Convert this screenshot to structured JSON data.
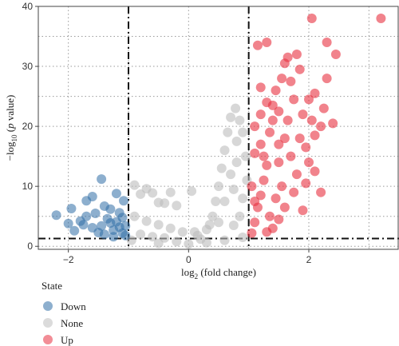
{
  "chart_data": {
    "type": "scatter",
    "title": "",
    "xlabel": {
      "base": "log",
      "sub": "2",
      "rest": " (fold change)"
    },
    "ylabel": {
      "pre": "−log",
      "sub": "10",
      "mid": " (",
      "ital": "p",
      "post": " value)"
    },
    "xlim": [
      -2.5,
      3.5
    ],
    "ylim": [
      -0.5,
      40
    ],
    "xticks": [
      -2,
      0,
      2
    ],
    "yticks": [
      0,
      10,
      20,
      30,
      40
    ],
    "minor_x": [
      -1,
      1,
      3
    ],
    "minor_y": [
      5,
      15,
      25,
      35
    ],
    "grid": "dotted",
    "thresholds": {
      "fold_change": [
        -1,
        1
      ],
      "pvalue": 1.3
    },
    "legend": {
      "title": "State",
      "placement": "bottom-left",
      "entries": [
        {
          "name": "Down",
          "color": "#2f6ea6"
        },
        {
          "name": "None",
          "color": "#bdbdbd"
        },
        {
          "name": "Up",
          "color": "#e8303f"
        }
      ]
    },
    "series": [
      {
        "name": "Down",
        "color": "#2f6ea6",
        "opacity": 0.55,
        "points": [
          [
            -2.2,
            5.2
          ],
          [
            -2.0,
            3.8
          ],
          [
            -1.95,
            6.3
          ],
          [
            -1.8,
            4.2
          ],
          [
            -1.7,
            5.0
          ],
          [
            -1.7,
            7.6
          ],
          [
            -1.6,
            8.3
          ],
          [
            -1.55,
            5.5
          ],
          [
            -1.45,
            11.2
          ],
          [
            -1.4,
            6.7
          ],
          [
            -1.35,
            4.6
          ],
          [
            -1.3,
            3.9
          ],
          [
            -1.3,
            6.2
          ],
          [
            -1.25,
            2.7
          ],
          [
            -1.2,
            4.1
          ],
          [
            -1.2,
            8.8
          ],
          [
            -1.15,
            3.2
          ],
          [
            -1.15,
            5.6
          ],
          [
            -1.1,
            2.2
          ],
          [
            -1.1,
            4.8
          ],
          [
            -1.08,
            7.6
          ],
          [
            -1.05,
            3.4
          ],
          [
            -1.05,
            1.8
          ],
          [
            -1.5,
            2.3
          ],
          [
            -1.6,
            3.1
          ],
          [
            -1.4,
            2.0
          ],
          [
            -1.9,
            2.6
          ],
          [
            -1.75,
            3.6
          ],
          [
            -1.25,
            1.6
          ],
          [
            -1.45,
            3.4
          ]
        ]
      },
      {
        "name": "None",
        "color": "#bdbdbd",
        "opacity": 0.6,
        "points": [
          [
            -0.9,
            10.2
          ],
          [
            -0.8,
            8.7
          ],
          [
            -0.7,
            9.6
          ],
          [
            -0.5,
            7.3
          ],
          [
            -0.6,
            8.9
          ],
          [
            -0.3,
            9.0
          ],
          [
            -0.4,
            7.2
          ],
          [
            -0.2,
            6.8
          ],
          [
            0.05,
            9.2
          ],
          [
            -0.9,
            5.0
          ],
          [
            -0.7,
            4.2
          ],
          [
            -0.5,
            3.6
          ],
          [
            -0.3,
            3.0
          ],
          [
            -0.1,
            2.4
          ],
          [
            0.1,
            2.4
          ],
          [
            -0.8,
            2.0
          ],
          [
            -0.6,
            1.6
          ],
          [
            -0.4,
            1.4
          ],
          [
            -0.2,
            0.8
          ],
          [
            0.0,
            0.4
          ],
          [
            0.2,
            1.2
          ],
          [
            0.3,
            2.8
          ],
          [
            0.4,
            5.0
          ],
          [
            0.45,
            7.5
          ],
          [
            0.5,
            10.0
          ],
          [
            0.55,
            13.0
          ],
          [
            0.6,
            16.0
          ],
          [
            0.65,
            19.0
          ],
          [
            0.7,
            21.5
          ],
          [
            0.78,
            23.0
          ],
          [
            0.85,
            21.0
          ],
          [
            0.9,
            19.0
          ],
          [
            0.95,
            15.0
          ],
          [
            0.97,
            11.0
          ],
          [
            0.9,
            8.0
          ],
          [
            0.85,
            5.0
          ],
          [
            0.75,
            3.5
          ],
          [
            0.6,
            7.5
          ],
          [
            0.7,
            12.0
          ],
          [
            0.8,
            14.0
          ],
          [
            0.5,
            4.0
          ],
          [
            0.35,
            3.6
          ],
          [
            0.15,
            1.8
          ],
          [
            -0.95,
            1.0
          ],
          [
            -0.5,
            0.5
          ],
          [
            0.3,
            0.6
          ],
          [
            0.6,
            1.0
          ],
          [
            0.9,
            1.5
          ],
          [
            0.8,
            17.5
          ],
          [
            0.75,
            9.5
          ]
        ]
      },
      {
        "name": "Up",
        "color": "#e8303f",
        "opacity": 0.6,
        "points": [
          [
            1.05,
            2.2
          ],
          [
            1.1,
            4.0
          ],
          [
            1.15,
            6.5
          ],
          [
            1.2,
            8.5
          ],
          [
            1.25,
            11.0
          ],
          [
            1.3,
            13.5
          ],
          [
            1.1,
            15.5
          ],
          [
            1.2,
            17.0
          ],
          [
            1.35,
            19.0
          ],
          [
            1.4,
            21.0
          ],
          [
            1.5,
            22.5
          ],
          [
            1.3,
            24.0
          ],
          [
            1.45,
            26.0
          ],
          [
            1.55,
            28.0
          ],
          [
            1.15,
            33.5
          ],
          [
            1.3,
            34.0
          ],
          [
            1.6,
            30.5
          ],
          [
            1.65,
            31.5
          ],
          [
            1.8,
            32.0
          ],
          [
            1.7,
            27.5
          ],
          [
            1.85,
            29.5
          ],
          [
            1.2,
            26.5
          ],
          [
            1.4,
            23.5
          ],
          [
            1.6,
            18.0
          ],
          [
            1.7,
            15.0
          ],
          [
            1.8,
            12.0
          ],
          [
            1.75,
            9.0
          ],
          [
            1.6,
            6.5
          ],
          [
            1.5,
            4.5
          ],
          [
            1.4,
            3.0
          ],
          [
            1.3,
            2.4
          ],
          [
            1.9,
            6.0
          ],
          [
            1.95,
            10.5
          ],
          [
            2.0,
            14.0
          ],
          [
            2.05,
            21.0
          ],
          [
            2.0,
            24.5
          ],
          [
            1.9,
            22.0
          ],
          [
            2.1,
            18.5
          ],
          [
            2.2,
            20.0
          ],
          [
            2.1,
            25.5
          ],
          [
            2.25,
            23.0
          ],
          [
            2.2,
            9.0
          ],
          [
            2.1,
            12.5
          ],
          [
            2.3,
            34.0
          ],
          [
            2.45,
            32.0
          ],
          [
            2.4,
            20.5
          ],
          [
            2.3,
            28.0
          ],
          [
            2.05,
            38.0
          ],
          [
            3.2,
            38.0
          ],
          [
            1.05,
            10.0
          ],
          [
            1.1,
            20.0
          ],
          [
            1.2,
            22.0
          ],
          [
            1.5,
            14.0
          ],
          [
            1.55,
            10.0
          ],
          [
            1.65,
            21.0
          ],
          [
            1.75,
            24.5
          ],
          [
            1.85,
            18.0
          ],
          [
            1.95,
            16.5
          ],
          [
            1.45,
            8.0
          ],
          [
            1.35,
            5.0
          ],
          [
            1.1,
            7.5
          ],
          [
            1.25,
            15.0
          ],
          [
            1.5,
            17.0
          ]
        ]
      }
    ]
  }
}
